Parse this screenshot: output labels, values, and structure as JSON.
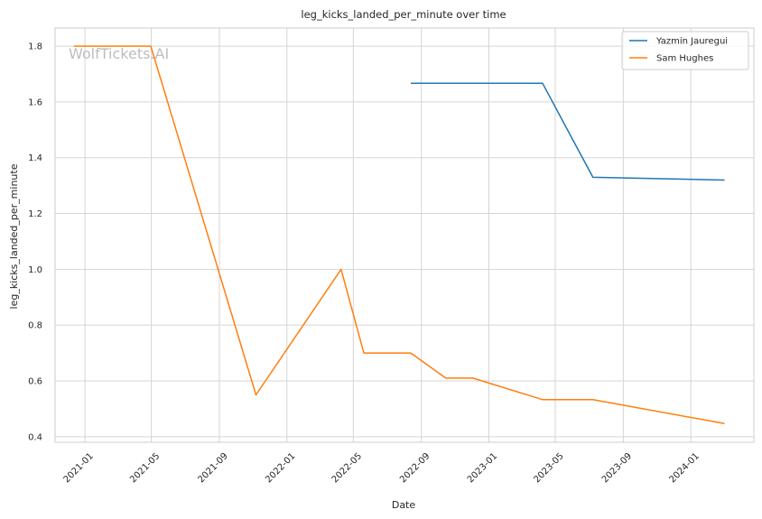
{
  "chart_data": {
    "type": "line",
    "title": "leg_kicks_landed_per_minute over time",
    "xlabel": "Date",
    "ylabel": "leg_kicks_landed_per_minute",
    "watermark": "WolfTickets.AI",
    "x_ticks": [
      "2021-01",
      "2021-05",
      "2021-09",
      "2022-01",
      "2022-05",
      "2022-09",
      "2023-01",
      "2023-05",
      "2023-09",
      "2024-01"
    ],
    "y_ticks": [
      "0.4",
      "0.6",
      "0.8",
      "1.0",
      "1.2",
      "1.4",
      "1.6",
      "1.8"
    ],
    "xlim": [
      "2020-11-08",
      "2024-04-24"
    ],
    "ylim": [
      0.38,
      1.865
    ],
    "grid": true,
    "legend_position": "top-right",
    "series": [
      {
        "name": "Yazmin Jauregui",
        "color": "#1f77b4",
        "x": [
          "2022-08-13",
          "2023-04-08",
          "2023-07-08",
          "2024-03-02"
        ],
        "y": [
          1.667,
          1.667,
          1.33,
          1.32
        ]
      },
      {
        "name": "Sam Hughes",
        "color": "#ff7f0e",
        "x": [
          "2020-12-12",
          "2021-04-30",
          "2021-11-06",
          "2022-04-09",
          "2022-05-20",
          "2022-08-13",
          "2022-10-15",
          "2022-12-03",
          "2023-04-08",
          "2023-07-08",
          "2024-03-02"
        ],
        "y": [
          1.8,
          1.8,
          0.55,
          1.0,
          0.7,
          0.7,
          0.61,
          0.61,
          0.533,
          0.533,
          0.447
        ]
      }
    ]
  }
}
